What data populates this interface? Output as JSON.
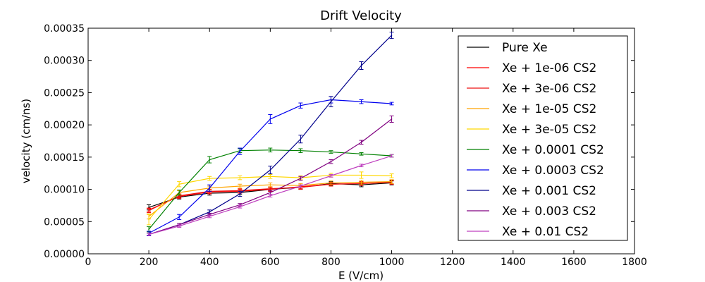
{
  "chart_data": {
    "type": "line",
    "title": "Drift Velocity",
    "xlabel": "E (V/cm)",
    "ylabel": "velocity (cm/ns)",
    "xlim": [
      0,
      1800
    ],
    "ylim": [
      0,
      0.00035
    ],
    "xticks": [
      "0",
      "200",
      "400",
      "600",
      "800",
      "1000",
      "1200",
      "1400",
      "1600",
      "1800"
    ],
    "yticks": [
      "0.00000",
      "0.00005",
      "0.00010",
      "0.00015",
      "0.00020",
      "0.00025",
      "0.00030",
      "0.00035"
    ],
    "grid": false,
    "legend_position": "top-right",
    "x": [
      200,
      300,
      400,
      500,
      600,
      700,
      800,
      900,
      1000
    ],
    "series": [
      {
        "name": "Pure Xe",
        "color": "#000000",
        "values": [
          7.2e-05,
          8.8e-05,
          9.4e-05,
          9.5e-05,
          0.0001,
          0.000103,
          0.000109,
          0.000107,
          0.00011
        ],
        "errors": [
          4e-06,
          3e-06,
          3e-06,
          3e-06,
          3e-06,
          3e-06,
          3e-06,
          3e-06,
          3e-06
        ]
      },
      {
        "name": "Xe + 1e-06 CS2",
        "color": "#ff0000",
        "values": [
          6.8e-05,
          8.9e-05,
          9.6e-05,
          9.7e-05,
          0.0001,
          0.000104,
          0.000108,
          0.000109,
          0.000111
        ],
        "errors": [
          3e-06,
          3e-06,
          3e-06,
          3e-06,
          3e-06,
          3e-06,
          3e-06,
          3e-06,
          3e-06
        ]
      },
      {
        "name": "Xe + 3e-06 CS2",
        "color": "#ee1111",
        "values": [
          6.7e-05,
          9e-05,
          9.7e-05,
          9.8e-05,
          0.000101,
          0.000103,
          0.000108,
          0.000109,
          0.000111
        ],
        "errors": [
          3e-06,
          3e-06,
          3e-06,
          3e-06,
          3e-06,
          3e-06,
          3e-06,
          3e-06,
          3e-06
        ]
      },
      {
        "name": "Xe + 1e-05 CS2",
        "color": "#ffa500",
        "values": [
          5.8e-05,
          9.5e-05,
          0.000102,
          0.000105,
          0.000107,
          0.000106,
          0.00011,
          0.000111,
          0.000112
        ],
        "errors": [
          4e-06,
          3e-06,
          3e-06,
          3e-06,
          3e-06,
          3e-06,
          3e-06,
          3e-06,
          3e-06
        ]
      },
      {
        "name": "Xe + 3e-05 CS2",
        "color": "#ffd700",
        "values": [
          5.3e-05,
          0.000108,
          0.000117,
          0.000118,
          0.00012,
          0.000118,
          0.000122,
          0.000122,
          0.000121
        ],
        "errors": [
          8e-06,
          4e-06,
          3e-06,
          3e-06,
          3e-06,
          3e-06,
          3e-06,
          5e-06,
          3e-06
        ]
      },
      {
        "name": "Xe + 0.0001 CS2",
        "color": "#008000",
        "values": [
          3.8e-05,
          9.5e-05,
          0.000146,
          0.00016,
          0.000161,
          0.00016,
          0.000158,
          0.000155,
          0.000152
        ],
        "errors": [
          4e-06,
          4e-06,
          5e-06,
          3e-06,
          3e-06,
          3e-06,
          2e-06,
          2e-06,
          2e-06
        ]
      },
      {
        "name": "Xe + 0.0003 CS2",
        "color": "#0000ee",
        "values": [
          3.2e-05,
          5.7e-05,
          0.000102,
          0.000159,
          0.000209,
          0.00023,
          0.000239,
          0.000236,
          0.000233
        ],
        "errors": [
          3e-06,
          4e-06,
          5e-06,
          5e-06,
          7e-06,
          4e-06,
          5e-06,
          3e-06,
          2e-06
        ]
      },
      {
        "name": "Xe + 0.001 CS2",
        "color": "#00008b",
        "values": [
          3e-05,
          4.5e-05,
          6.5e-05,
          9.3e-05,
          0.00013,
          0.000178,
          0.000236,
          0.000292,
          0.000339
        ],
        "errors": [
          2e-06,
          2e-06,
          3e-06,
          4e-06,
          6e-06,
          6e-06,
          8e-06,
          6e-06,
          5e-06
        ]
      },
      {
        "name": "Xe + 0.003 CS2",
        "color": "#800080",
        "values": [
          3e-05,
          4.5e-05,
          6.1e-05,
          7.6e-05,
          9.5e-05,
          0.000117,
          0.000143,
          0.000173,
          0.000209
        ],
        "errors": [
          2e-06,
          2e-06,
          2e-06,
          2e-06,
          3e-06,
          3e-06,
          3e-06,
          3e-06,
          5e-06
        ]
      },
      {
        "name": "Xe + 0.01 CS2",
        "color": "#bf40bf",
        "values": [
          3e-05,
          4.3e-05,
          5.8e-05,
          7.3e-05,
          9e-05,
          0.000105,
          0.000121,
          0.000137,
          0.000152
        ],
        "errors": [
          2e-06,
          2e-06,
          2e-06,
          2e-06,
          2e-06,
          2e-06,
          2e-06,
          2e-06,
          2e-06
        ]
      }
    ]
  }
}
